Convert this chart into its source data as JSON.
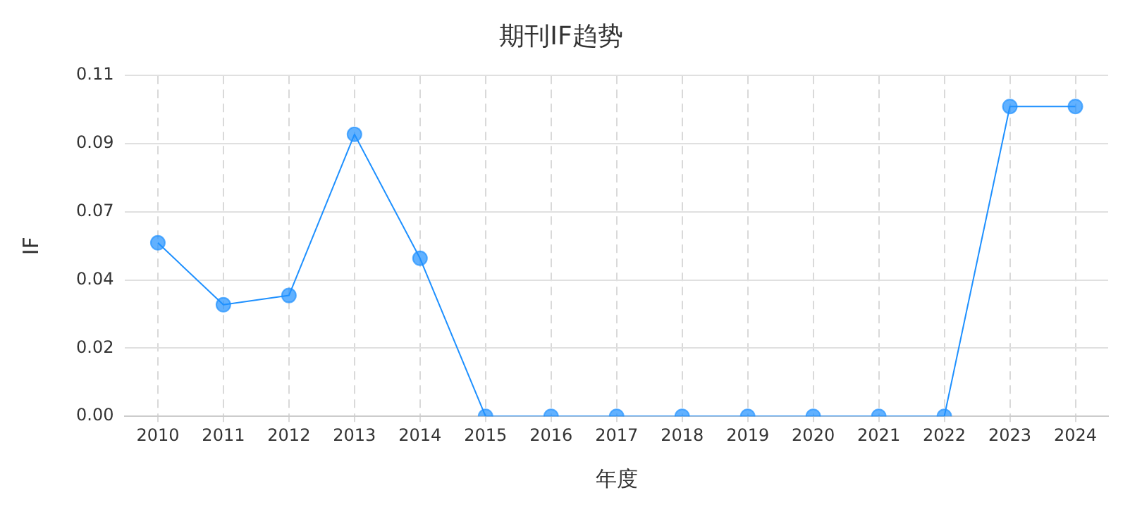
{
  "chart_data": {
    "type": "line",
    "title": "期刊IF趋势",
    "xlabel": "年度",
    "ylabel": "IF",
    "categories": [
      "2010",
      "2011",
      "2012",
      "2013",
      "2014",
      "2015",
      "2016",
      "2017",
      "2018",
      "2019",
      "2020",
      "2021",
      "2022",
      "2023",
      "2024"
    ],
    "series": [
      {
        "color": "#1e90ff",
        "values": [
          0.056,
          0.036,
          0.039,
          0.091,
          0.051,
          0,
          0,
          0,
          0,
          0,
          0,
          0,
          0,
          0.1,
          0.1
        ]
      }
    ],
    "ylim": [
      0,
      0.11
    ],
    "yticks": [
      {
        "value": 0,
        "label": "0.00"
      },
      {
        "value": 0.022,
        "label": "0.02"
      },
      {
        "value": 0.044,
        "label": "0.04"
      },
      {
        "value": 0.066,
        "label": "0.07"
      },
      {
        "value": 0.088,
        "label": "0.09"
      },
      {
        "value": 0.11,
        "label": "0.11"
      }
    ],
    "grid": true,
    "legend": false,
    "marker": "circle",
    "line_style": "solid"
  }
}
